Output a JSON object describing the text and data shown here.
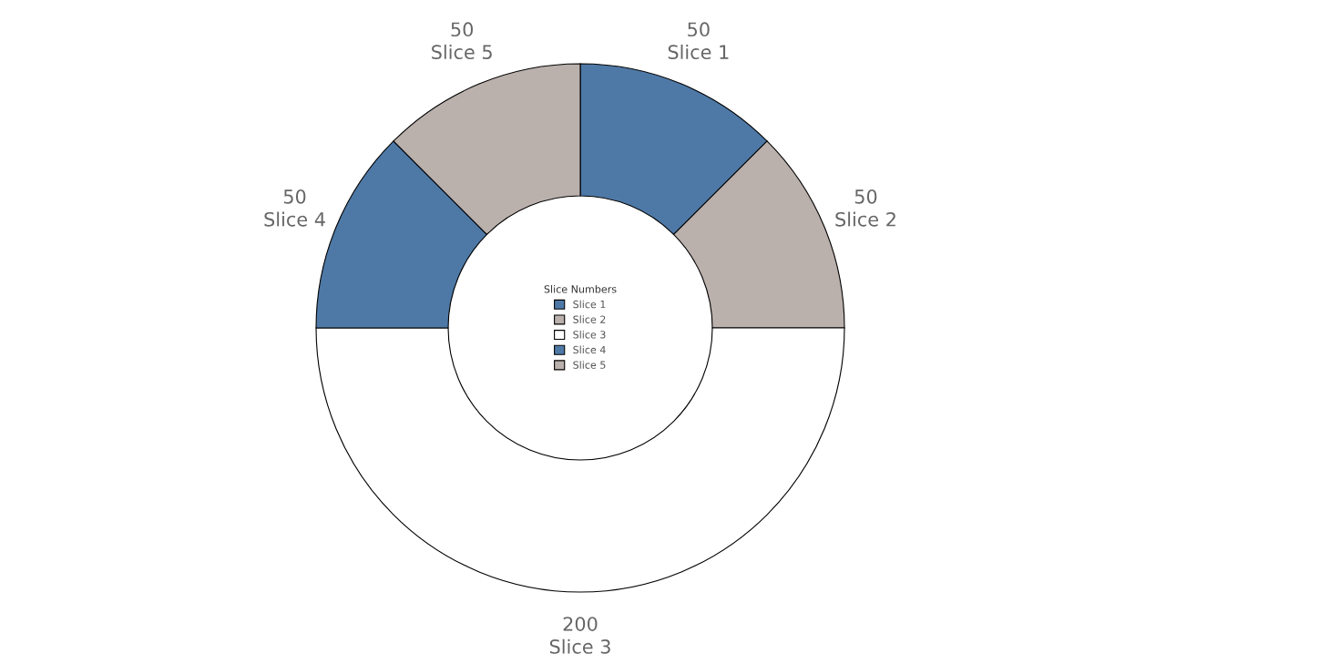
{
  "chart_data": {
    "type": "donut",
    "categories": [
      "Slice 1",
      "Slice 2",
      "Slice 3",
      "Slice 4",
      "Slice 5"
    ],
    "values": [
      50,
      50,
      200,
      50,
      50
    ],
    "colors": [
      "#4e79a7",
      "#bab0ac",
      "#ffffff",
      "#4e79a7",
      "#bab0ac"
    ],
    "data_labels": true,
    "legend": "center",
    "legend_title": "Slice Numbers"
  }
}
